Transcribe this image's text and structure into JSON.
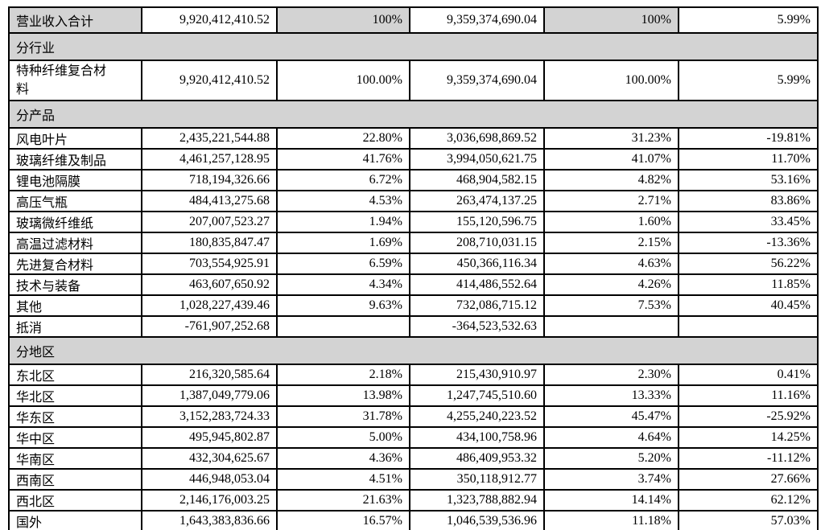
{
  "colors": {
    "section_shade": "#d3d3d3",
    "border": "#000000",
    "text": "#000000",
    "background": "#ffffff"
  },
  "table": {
    "rows": [
      {
        "type": "total",
        "shaded_cols": [
          0,
          2,
          4
        ],
        "cells": [
          "营业收入合计",
          "9,920,412,410.52",
          "100%",
          "9,359,374,690.04",
          "100%",
          "5.99%"
        ]
      },
      {
        "type": "section",
        "label": "分行业"
      },
      {
        "type": "data",
        "wrap": true,
        "cells": [
          "特种纤维复合材料",
          "9,920,412,410.52",
          "100.00%",
          "9,359,374,690.04",
          "100.00%",
          "5.99%"
        ]
      },
      {
        "type": "section",
        "label": "分产品"
      },
      {
        "type": "data",
        "cells": [
          "风电叶片",
          "2,435,221,544.88",
          "22.80%",
          "3,036,698,869.52",
          "31.23%",
          "-19.81%"
        ]
      },
      {
        "type": "data",
        "cells": [
          "玻璃纤维及制品",
          "4,461,257,128.95",
          "41.76%",
          "3,994,050,621.75",
          "41.07%",
          "11.70%"
        ]
      },
      {
        "type": "data",
        "cells": [
          "锂电池隔膜",
          "718,194,326.66",
          "6.72%",
          "468,904,582.15",
          "4.82%",
          "53.16%"
        ]
      },
      {
        "type": "data",
        "cells": [
          "高压气瓶",
          "484,413,275.68",
          "4.53%",
          "263,474,137.25",
          "2.71%",
          "83.86%"
        ]
      },
      {
        "type": "data",
        "cells": [
          "玻璃微纤维纸",
          "207,007,523.27",
          "1.94%",
          "155,120,596.75",
          "1.60%",
          "33.45%"
        ]
      },
      {
        "type": "data",
        "cells": [
          "高温过滤材料",
          "180,835,847.47",
          "1.69%",
          "208,710,031.15",
          "2.15%",
          "-13.36%"
        ]
      },
      {
        "type": "data",
        "cells": [
          "先进复合材料",
          "703,554,925.91",
          "6.59%",
          "450,366,116.34",
          "4.63%",
          "56.22%"
        ]
      },
      {
        "type": "data",
        "cells": [
          "技术与装备",
          "463,607,650.92",
          "4.34%",
          "414,486,552.64",
          "4.26%",
          "11.85%"
        ]
      },
      {
        "type": "data",
        "cells": [
          "其他",
          "1,028,227,439.46",
          "9.63%",
          "732,086,715.12",
          "7.53%",
          "40.45%"
        ]
      },
      {
        "type": "data",
        "cells": [
          "抵消",
          "-761,907,252.68",
          "",
          "-364,523,532.63",
          "",
          ""
        ]
      },
      {
        "type": "section",
        "label": "分地区"
      },
      {
        "type": "data",
        "cells": [
          "东北区",
          "216,320,585.64",
          "2.18%",
          "215,430,910.97",
          "2.30%",
          "0.41%"
        ]
      },
      {
        "type": "data",
        "cells": [
          "华北区",
          "1,387,049,779.06",
          "13.98%",
          "1,247,745,510.60",
          "13.33%",
          "11.16%"
        ]
      },
      {
        "type": "data",
        "cells": [
          "华东区",
          "3,152,283,724.33",
          "31.78%",
          "4,255,240,223.52",
          "45.47%",
          "-25.92%"
        ]
      },
      {
        "type": "data",
        "cells": [
          "华中区",
          "495,945,802.87",
          "5.00%",
          "434,100,758.96",
          "4.64%",
          "14.25%"
        ]
      },
      {
        "type": "data",
        "cells": [
          "华南区",
          "432,304,625.67",
          "4.36%",
          "486,409,953.32",
          "5.20%",
          "-11.12%"
        ]
      },
      {
        "type": "data",
        "cells": [
          "西南区",
          "446,948,053.04",
          "4.51%",
          "350,118,912.77",
          "3.74%",
          "27.66%"
        ]
      },
      {
        "type": "data",
        "cells": [
          "西北区",
          "2,146,176,003.25",
          "21.63%",
          "1,323,788,882.94",
          "14.14%",
          "62.12%"
        ]
      },
      {
        "type": "data",
        "cells": [
          "国外",
          "1,643,383,836.66",
          "16.57%",
          "1,046,539,536.96",
          "11.18%",
          "57.03%"
        ]
      }
    ]
  }
}
